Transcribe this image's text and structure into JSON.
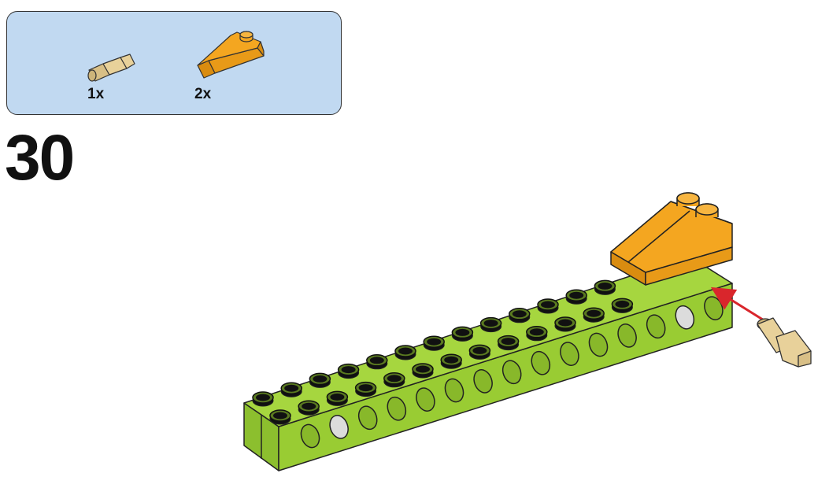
{
  "parts_list": {
    "items": [
      {
        "icon": "peg-icon",
        "quantity": "1x"
      },
      {
        "icon": "orange-slope-brick-icon",
        "quantity": "2x"
      }
    ]
  },
  "step": {
    "number": "30"
  },
  "colors": {
    "panel_bg": "#c1d9f1",
    "beam_green": "#99cc33",
    "slope_orange": "#f4a620",
    "peg_tan": "#e8d19a",
    "arrow_red": "#d9262c"
  }
}
